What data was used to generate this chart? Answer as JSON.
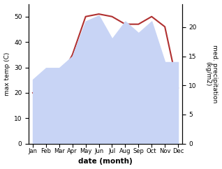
{
  "months": [
    "Jan",
    "Feb",
    "Mar",
    "Apr",
    "May",
    "Jun",
    "Jul",
    "Aug",
    "Sep",
    "Oct",
    "Nov",
    "Dec"
  ],
  "temp": [
    20,
    21,
    25,
    35,
    50,
    51,
    50,
    47,
    47,
    50,
    46,
    22
  ],
  "precip": [
    11,
    13,
    13,
    15,
    21,
    22,
    18,
    21,
    19,
    21,
    14,
    14
  ],
  "temp_color": "#b03030",
  "precip_fill": "#c8d4f5",
  "precip_edge": "#aabbdd",
  "ylabel_left": "max temp (C)",
  "ylabel_right": "med. precipitation\n(kg/m2)",
  "xlabel": "date (month)",
  "ylim_left": [
    0,
    55
  ],
  "ylim_right": [
    0,
    24
  ],
  "yticks_left": [
    0,
    10,
    20,
    30,
    40,
    50
  ],
  "yticks_right": [
    0,
    5,
    10,
    15,
    20
  ],
  "background_color": "#ffffff"
}
